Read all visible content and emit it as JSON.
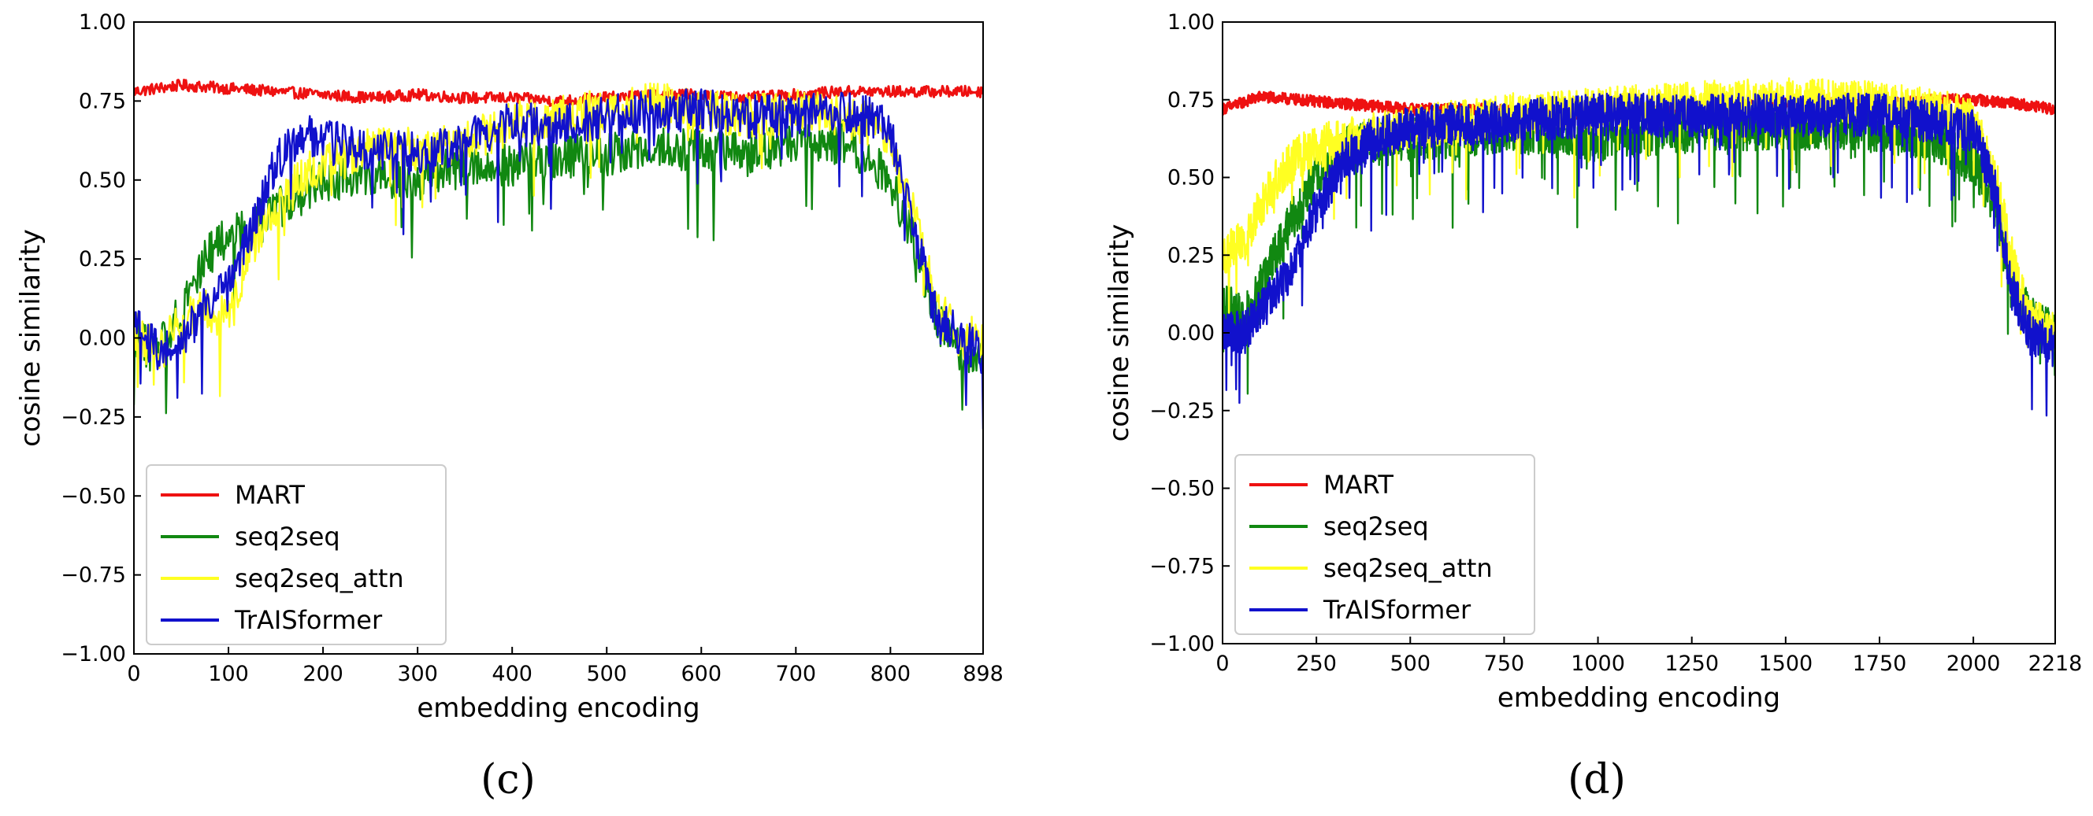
{
  "colors": {
    "MART": "#ee1111",
    "seq2seq": "#118811",
    "seq2seq_attn": "#ffff22",
    "TrAISformer": "#1111cc"
  },
  "chart_data": [
    {
      "type": "line",
      "panel_label": "(c)",
      "xlabel": "embedding encoding",
      "ylabel": "cosine similarity",
      "xlim": [
        0,
        898
      ],
      "ylim": [
        -1.0,
        1.0
      ],
      "xticks": [
        0,
        100,
        200,
        300,
        400,
        500,
        600,
        700,
        800,
        898
      ],
      "yticks": [
        "1.00",
        "0.75",
        "0.50",
        "0.25",
        "0.00",
        "−0.25",
        "−0.50",
        "−0.75",
        "−1.00"
      ],
      "ytick_values": [
        1.0,
        0.75,
        0.5,
        0.25,
        0.0,
        -0.25,
        -0.5,
        -0.75,
        -1.0
      ],
      "grid": false,
      "legend": "lower-left",
      "series": [
        {
          "name": "MART",
          "key": "MART",
          "x": [
            0,
            50,
            100,
            150,
            200,
            250,
            300,
            350,
            400,
            450,
            500,
            550,
            600,
            650,
            700,
            750,
            800,
            850,
            898
          ],
          "y": [
            0.78,
            0.8,
            0.79,
            0.78,
            0.77,
            0.76,
            0.77,
            0.76,
            0.76,
            0.75,
            0.76,
            0.77,
            0.77,
            0.76,
            0.77,
            0.78,
            0.78,
            0.78,
            0.78
          ]
        },
        {
          "name": "seq2seq",
          "key": "seq2seq",
          "x": [
            0,
            25,
            50,
            75,
            100,
            125,
            150,
            175,
            200,
            250,
            300,
            350,
            400,
            450,
            500,
            550,
            600,
            650,
            700,
            750,
            775,
            800,
            825,
            850,
            875,
            898
          ],
          "y": [
            0.0,
            -0.05,
            0.1,
            0.25,
            0.32,
            0.35,
            0.4,
            0.45,
            0.5,
            0.52,
            0.5,
            0.55,
            0.55,
            0.57,
            0.58,
            0.6,
            0.6,
            0.58,
            0.62,
            0.62,
            0.58,
            0.5,
            0.3,
            0.05,
            -0.05,
            -0.05
          ]
        },
        {
          "name": "seq2seq_attn",
          "key": "seq2seq_attn",
          "x": [
            0,
            25,
            50,
            75,
            100,
            125,
            150,
            175,
            200,
            250,
            300,
            350,
            400,
            450,
            500,
            550,
            600,
            650,
            700,
            750,
            775,
            800,
            825,
            850,
            875,
            898
          ],
          "y": [
            0.02,
            -0.05,
            0.05,
            0.1,
            0.05,
            0.3,
            0.4,
            0.5,
            0.55,
            0.6,
            0.6,
            0.62,
            0.68,
            0.7,
            0.72,
            0.74,
            0.72,
            0.7,
            0.72,
            0.7,
            0.68,
            0.6,
            0.4,
            0.1,
            0.0,
            0.0
          ]
        },
        {
          "name": "TrAISformer",
          "key": "TrAISformer",
          "x": [
            0,
            25,
            50,
            75,
            100,
            125,
            150,
            175,
            200,
            250,
            300,
            350,
            400,
            450,
            500,
            550,
            600,
            650,
            700,
            750,
            775,
            800,
            825,
            850,
            875,
            898
          ],
          "y": [
            0.05,
            -0.05,
            0.0,
            0.1,
            0.15,
            0.35,
            0.55,
            0.65,
            0.62,
            0.6,
            0.58,
            0.62,
            0.68,
            0.68,
            0.7,
            0.72,
            0.72,
            0.7,
            0.7,
            0.72,
            0.7,
            0.65,
            0.35,
            0.05,
            0.0,
            -0.05
          ]
        }
      ]
    },
    {
      "type": "line",
      "panel_label": "(d)",
      "xlabel": "embedding encoding",
      "ylabel": "cosine similarity",
      "xlim": [
        0,
        2218
      ],
      "ylim": [
        -1.0,
        1.0
      ],
      "xticks": [
        0,
        250,
        500,
        750,
        1000,
        1250,
        1500,
        1750,
        2000,
        2218
      ],
      "yticks": [
        "1.00",
        "0.75",
        "0.50",
        "0.25",
        "0.00",
        "−0.25",
        "−0.50",
        "−0.75",
        "−1.00"
      ],
      "ytick_values": [
        1.0,
        0.75,
        0.5,
        0.25,
        0.0,
        -0.25,
        -0.5,
        -0.75,
        -1.0
      ],
      "grid": false,
      "legend": "lower-left",
      "series": [
        {
          "name": "MART",
          "key": "MART",
          "x": [
            0,
            100,
            200,
            300,
            400,
            500,
            600,
            700,
            800,
            900,
            1000,
            1100,
            1200,
            1300,
            1400,
            1500,
            1600,
            1700,
            1800,
            1900,
            2000,
            2100,
            2218
          ],
          "y": [
            0.72,
            0.76,
            0.75,
            0.74,
            0.73,
            0.72,
            0.72,
            0.72,
            0.71,
            0.7,
            0.7,
            0.71,
            0.72,
            0.72,
            0.73,
            0.74,
            0.74,
            0.74,
            0.74,
            0.75,
            0.75,
            0.74,
            0.72
          ]
        },
        {
          "name": "seq2seq",
          "key": "seq2seq",
          "x": [
            0,
            60,
            120,
            180,
            250,
            320,
            400,
            500,
            750,
            1000,
            1250,
            1500,
            1750,
            1900,
            2000,
            2060,
            2100,
            2150,
            2218
          ],
          "y": [
            0.1,
            0.05,
            0.2,
            0.35,
            0.5,
            0.6,
            0.62,
            0.62,
            0.65,
            0.62,
            0.65,
            0.66,
            0.65,
            0.62,
            0.55,
            0.4,
            0.2,
            0.05,
            0.0
          ]
        },
        {
          "name": "seq2seq_attn",
          "key": "seq2seq_attn",
          "x": [
            0,
            60,
            120,
            180,
            250,
            320,
            400,
            500,
            750,
            1000,
            1250,
            1500,
            1750,
            1900,
            2000,
            2060,
            2100,
            2150,
            2218
          ],
          "y": [
            0.25,
            0.3,
            0.45,
            0.55,
            0.6,
            0.62,
            0.64,
            0.66,
            0.7,
            0.72,
            0.74,
            0.75,
            0.74,
            0.72,
            0.68,
            0.5,
            0.25,
            0.05,
            0.0
          ]
        },
        {
          "name": "TrAISformer",
          "key": "TrAISformer",
          "x": [
            0,
            60,
            120,
            180,
            250,
            320,
            400,
            500,
            750,
            1000,
            1250,
            1500,
            1750,
            1900,
            2000,
            2060,
            2100,
            2150,
            2218
          ],
          "y": [
            0.0,
            0.0,
            0.1,
            0.2,
            0.4,
            0.55,
            0.62,
            0.66,
            0.68,
            0.7,
            0.7,
            0.7,
            0.7,
            0.68,
            0.65,
            0.45,
            0.15,
            0.0,
            -0.05
          ]
        }
      ]
    }
  ]
}
